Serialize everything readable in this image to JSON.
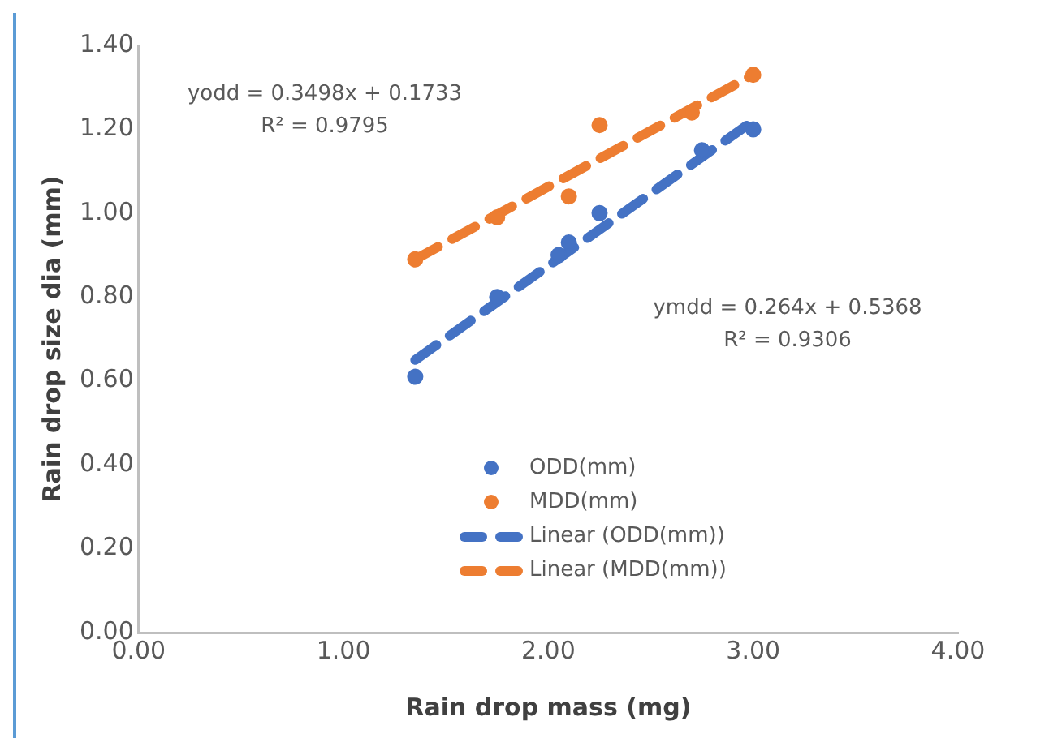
{
  "chart_data": {
    "type": "scatter",
    "xlabel": "Rain drop mass (mg)",
    "ylabel": "Rain drop size dia (mm)",
    "xlim": [
      0,
      4
    ],
    "xticks": [
      {
        "value": 0,
        "label": "0.00"
      },
      {
        "value": 1,
        "label": "1.00"
      },
      {
        "value": 2,
        "label": "2.00"
      },
      {
        "value": 3,
        "label": "3.00"
      },
      {
        "value": 4,
        "label": "4.00"
      }
    ],
    "ylim": [
      0,
      1.4
    ],
    "yticks": [
      {
        "value": 0,
        "label": "0.00"
      },
      {
        "value": 0.2,
        "label": "0.20"
      },
      {
        "value": 0.4,
        "label": "0.40"
      },
      {
        "value": 0.6,
        "label": "0.60"
      },
      {
        "value": 0.8,
        "label": "0.80"
      },
      {
        "value": 1,
        "label": "1.00"
      },
      {
        "value": 1.2,
        "label": "1.20"
      },
      {
        "value": 1.4,
        "label": "1.40"
      }
    ],
    "grid": false,
    "legend": "bottom",
    "marker": "circle",
    "series": [
      {
        "name": "ODD(mm)",
        "color": "#4472c4",
        "x": [
          1.35,
          1.75,
          2.05,
          2.1,
          2.25,
          2.75,
          3.0
        ],
        "values": [
          0.61,
          0.8,
          0.9,
          0.93,
          1.0,
          1.15,
          1.2
        ]
      },
      {
        "name": "MDD(mm)",
        "color": "#ed7d31",
        "x": [
          1.35,
          1.75,
          2.1,
          2.25,
          2.7,
          3.0
        ],
        "values": [
          0.89,
          0.99,
          1.04,
          1.21,
          1.24,
          1.33
        ]
      },
      {
        "name": "Linear (ODD(mm))",
        "type": "line",
        "line_style": "dashed",
        "marker": "none",
        "color": "#4472c4",
        "x": [
          1.35,
          3.0
        ],
        "values": [
          0.65,
          1.22
        ]
      },
      {
        "name": "Linear (MDD(mm))",
        "type": "line",
        "line_style": "dashed",
        "marker": "none",
        "color": "#ed7d31",
        "x": [
          1.35,
          3.0
        ],
        "values": [
          0.89,
          1.33
        ]
      }
    ],
    "annotations": [
      "yodd = 0.3498x + 0.1733",
      "R² = 0.9795",
      "ymdd = 0.264x + 0.5368",
      "R² = 0.9306"
    ]
  }
}
